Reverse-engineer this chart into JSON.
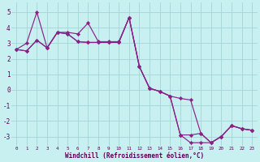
{
  "xlabel": "Windchill (Refroidissement éolien,°C)",
  "bg_color": "#c8f0f0",
  "grid_color": "#a8d8d8",
  "line_color": "#882288",
  "xlim": [
    -0.5,
    23.5
  ],
  "ylim": [
    -3.6,
    5.6
  ],
  "xticks": [
    0,
    1,
    2,
    3,
    4,
    5,
    6,
    7,
    8,
    9,
    10,
    11,
    12,
    13,
    14,
    15,
    16,
    17,
    18,
    19,
    20,
    21,
    22,
    23
  ],
  "yticks": [
    -3,
    -2,
    -1,
    0,
    1,
    2,
    3,
    4,
    5
  ],
  "hours": [
    0,
    1,
    2,
    3,
    4,
    5,
    6,
    7,
    8,
    9,
    10,
    11,
    12,
    13,
    14,
    15,
    16,
    17,
    18,
    19,
    20,
    21,
    22,
    23
  ],
  "line1": [
    2.6,
    3.0,
    5.0,
    2.7,
    3.7,
    3.7,
    3.6,
    4.3,
    3.1,
    3.1,
    3.1,
    4.65,
    1.5,
    0.1,
    -0.1,
    -0.4,
    -2.9,
    -2.9,
    -2.8,
    -3.4,
    -3.0,
    -2.3,
    -2.5,
    -2.6
  ],
  "line2": [
    2.6,
    2.5,
    3.2,
    2.7,
    3.7,
    3.6,
    3.1,
    3.05,
    3.05,
    3.05,
    3.05,
    4.65,
    1.5,
    0.1,
    -0.1,
    -0.4,
    -0.55,
    -0.65,
    -2.8,
    -3.4,
    -3.0,
    -2.3,
    -2.5,
    -2.6
  ],
  "line3": [
    2.6,
    2.5,
    3.2,
    2.7,
    3.7,
    3.6,
    3.1,
    3.05,
    3.05,
    3.05,
    3.05,
    4.65,
    1.5,
    0.1,
    -0.1,
    -0.4,
    -2.9,
    -3.4,
    -3.4,
    -3.4,
    -3.0,
    -2.3,
    -2.5,
    -2.6
  ]
}
